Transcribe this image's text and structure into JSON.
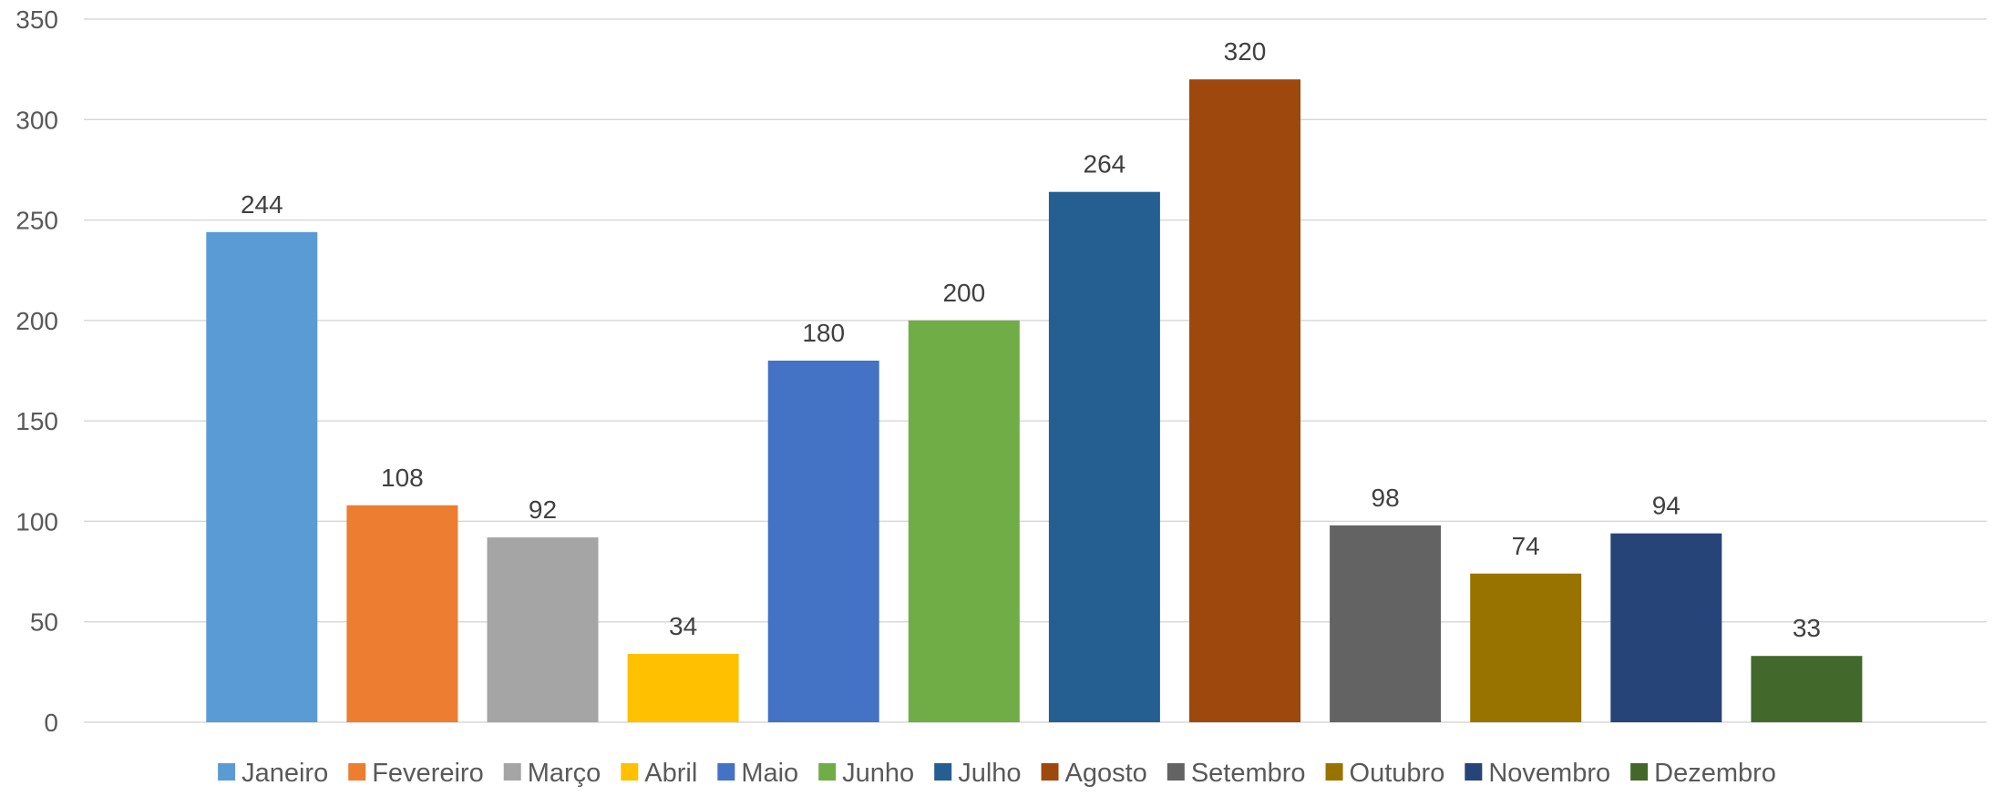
{
  "chart_data": {
    "type": "bar",
    "title": "",
    "xlabel": "",
    "ylabel": "",
    "ylim": [
      0,
      350
    ],
    "yticks": [
      0,
      50,
      100,
      150,
      200,
      250,
      300,
      350
    ],
    "grid": true,
    "legend_position": "bottom",
    "categories": [
      "Janeiro",
      "Fevereiro",
      "Março",
      "Abril",
      "Maio",
      "Junho",
      "Julho",
      "Agosto",
      "Setembro",
      "Outubro",
      "Novembro",
      "Dezembro"
    ],
    "values": [
      244,
      108,
      92,
      34,
      180,
      200,
      264,
      320,
      98,
      74,
      94,
      33
    ],
    "colors": [
      "#5b9bd5",
      "#ed7d31",
      "#a5a5a5",
      "#ffc000",
      "#4472c4",
      "#70ad47",
      "#255e91",
      "#9e480e",
      "#636363",
      "#997300",
      "#264478",
      "#43682b"
    ]
  }
}
